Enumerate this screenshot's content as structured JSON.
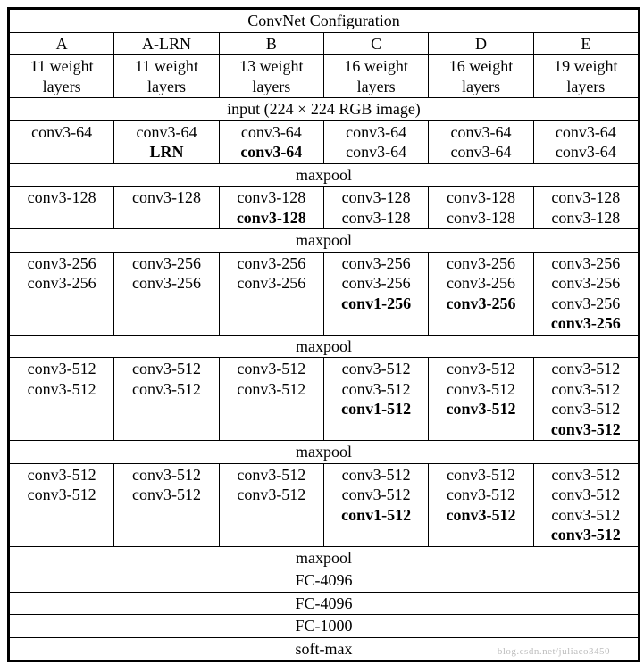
{
  "title": "ConvNet Configuration",
  "columns": [
    "A",
    "A-LRN",
    "B",
    "C",
    "D",
    "E"
  ],
  "depths": [
    "11 weight layers",
    "11 weight layers",
    "13 weight layers",
    "16 weight layers",
    "16 weight layers",
    "19 weight layers"
  ],
  "input_row": "input (224 × 224 RGB image)",
  "blocks": [
    {
      "cells": [
        [
          [
            "conv3-64",
            false
          ]
        ],
        [
          [
            "conv3-64",
            false
          ],
          [
            "LRN",
            true
          ]
        ],
        [
          [
            "conv3-64",
            false
          ],
          [
            "conv3-64",
            true
          ]
        ],
        [
          [
            "conv3-64",
            false
          ],
          [
            "conv3-64",
            false
          ]
        ],
        [
          [
            "conv3-64",
            false
          ],
          [
            "conv3-64",
            false
          ]
        ],
        [
          [
            "conv3-64",
            false
          ],
          [
            "conv3-64",
            false
          ]
        ]
      ]
    },
    {
      "cells": [
        [
          [
            "conv3-128",
            false
          ]
        ],
        [
          [
            "conv3-128",
            false
          ]
        ],
        [
          [
            "conv3-128",
            false
          ],
          [
            "conv3-128",
            true
          ]
        ],
        [
          [
            "conv3-128",
            false
          ],
          [
            "conv3-128",
            false
          ]
        ],
        [
          [
            "conv3-128",
            false
          ],
          [
            "conv3-128",
            false
          ]
        ],
        [
          [
            "conv3-128",
            false
          ],
          [
            "conv3-128",
            false
          ]
        ]
      ]
    },
    {
      "cells": [
        [
          [
            "conv3-256",
            false
          ],
          [
            "conv3-256",
            false
          ]
        ],
        [
          [
            "conv3-256",
            false
          ],
          [
            "conv3-256",
            false
          ]
        ],
        [
          [
            "conv3-256",
            false
          ],
          [
            "conv3-256",
            false
          ]
        ],
        [
          [
            "conv3-256",
            false
          ],
          [
            "conv3-256",
            false
          ],
          [
            "conv1-256",
            true
          ]
        ],
        [
          [
            "conv3-256",
            false
          ],
          [
            "conv3-256",
            false
          ],
          [
            "conv3-256",
            true
          ]
        ],
        [
          [
            "conv3-256",
            false
          ],
          [
            "conv3-256",
            false
          ],
          [
            "conv3-256",
            false
          ],
          [
            "conv3-256",
            true
          ]
        ]
      ]
    },
    {
      "cells": [
        [
          [
            "conv3-512",
            false
          ],
          [
            "conv3-512",
            false
          ]
        ],
        [
          [
            "conv3-512",
            false
          ],
          [
            "conv3-512",
            false
          ]
        ],
        [
          [
            "conv3-512",
            false
          ],
          [
            "conv3-512",
            false
          ]
        ],
        [
          [
            "conv3-512",
            false
          ],
          [
            "conv3-512",
            false
          ],
          [
            "conv1-512",
            true
          ]
        ],
        [
          [
            "conv3-512",
            false
          ],
          [
            "conv3-512",
            false
          ],
          [
            "conv3-512",
            true
          ]
        ],
        [
          [
            "conv3-512",
            false
          ],
          [
            "conv3-512",
            false
          ],
          [
            "conv3-512",
            false
          ],
          [
            "conv3-512",
            true
          ]
        ]
      ]
    },
    {
      "cells": [
        [
          [
            "conv3-512",
            false
          ],
          [
            "conv3-512",
            false
          ]
        ],
        [
          [
            "conv3-512",
            false
          ],
          [
            "conv3-512",
            false
          ]
        ],
        [
          [
            "conv3-512",
            false
          ],
          [
            "conv3-512",
            false
          ]
        ],
        [
          [
            "conv3-512",
            false
          ],
          [
            "conv3-512",
            false
          ],
          [
            "conv1-512",
            true
          ]
        ],
        [
          [
            "conv3-512",
            false
          ],
          [
            "conv3-512",
            false
          ],
          [
            "conv3-512",
            true
          ]
        ],
        [
          [
            "conv3-512",
            false
          ],
          [
            "conv3-512",
            false
          ],
          [
            "conv3-512",
            false
          ],
          [
            "conv3-512",
            true
          ]
        ]
      ]
    }
  ],
  "separators": [
    "maxpool",
    "maxpool",
    "maxpool",
    "maxpool",
    "maxpool"
  ],
  "tail": [
    "FC-4096",
    "FC-4096",
    "FC-1000",
    "soft-max"
  ],
  "watermark": "blog.csdn.net/juliaco3450"
}
